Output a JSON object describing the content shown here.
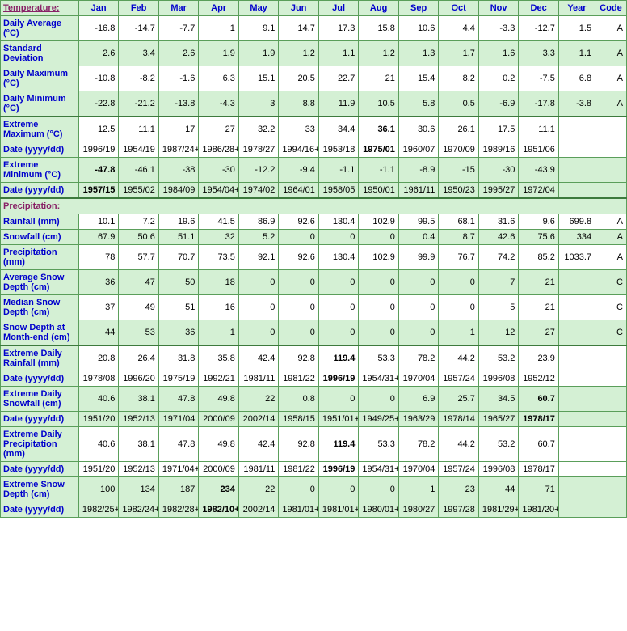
{
  "months": [
    "Jan",
    "Feb",
    "Mar",
    "Apr",
    "May",
    "Jun",
    "Jul",
    "Aug",
    "Sep",
    "Oct",
    "Nov",
    "Dec"
  ],
  "headerFirst": "Temperature:",
  "headerYear": "Year",
  "headerCode": "Code",
  "sectionPrecip": "Precipitation:",
  "rows": [
    {
      "label": "Daily Average (°C)",
      "even": false,
      "vals": [
        "-16.8",
        "-14.7",
        "-7.7",
        "1",
        "9.1",
        "14.7",
        "17.3",
        "15.8",
        "10.6",
        "4.4",
        "-3.3",
        "-12.7",
        "1.5",
        "A"
      ]
    },
    {
      "label": "Standard Deviation",
      "even": true,
      "vals": [
        "2.6",
        "3.4",
        "2.6",
        "1.9",
        "1.9",
        "1.2",
        "1.1",
        "1.2",
        "1.3",
        "1.7",
        "1.6",
        "3.3",
        "1.1",
        "A"
      ]
    },
    {
      "label": "Daily Maximum (°C)",
      "even": false,
      "vals": [
        "-10.8",
        "-8.2",
        "-1.6",
        "6.3",
        "15.1",
        "20.5",
        "22.7",
        "21",
        "15.4",
        "8.2",
        "0.2",
        "-7.5",
        "6.8",
        "A"
      ]
    },
    {
      "label": "Daily Minimum (°C)",
      "even": true,
      "vals": [
        "-22.8",
        "-21.2",
        "-13.8",
        "-4.3",
        "3",
        "8.8",
        "11.9",
        "10.5",
        "5.8",
        "0.5",
        "-6.9",
        "-17.8",
        "-3.8",
        "A"
      ]
    },
    {
      "label": "Extreme Maximum (°C)",
      "even": false,
      "thick": true,
      "vals": [
        "12.5",
        "11.1",
        "17",
        "27",
        "32.2",
        "33",
        "34.4",
        "36.1",
        "30.6",
        "26.1",
        "17.5",
        "11.1",
        "",
        ""
      ],
      "bold": [
        7
      ]
    },
    {
      "label": "Date (yyyy/dd)",
      "even": false,
      "vals": [
        "1996/19",
        "1954/19",
        "1987/24+",
        "1986/28+",
        "1978/27",
        "1994/16+",
        "1953/18",
        "1975/01",
        "1960/07",
        "1970/09",
        "1989/16",
        "1951/06",
        "",
        ""
      ],
      "bold": [
        7
      ]
    },
    {
      "label": "Extreme Minimum (°C)",
      "even": true,
      "vals": [
        "-47.8",
        "-46.1",
        "-38",
        "-30",
        "-12.2",
        "-9.4",
        "-1.1",
        "-1.1",
        "-8.9",
        "-15",
        "-30",
        "-43.9",
        "",
        ""
      ],
      "bold": [
        0
      ]
    },
    {
      "label": "Date (yyyy/dd)",
      "even": true,
      "vals": [
        "1957/15",
        "1955/02",
        "1984/09",
        "1954/04+",
        "1974/02",
        "1964/01",
        "1958/05",
        "1950/01",
        "1961/11",
        "1950/23",
        "1995/27",
        "1972/04",
        "",
        ""
      ],
      "bold": [
        0
      ]
    },
    {
      "section": true
    },
    {
      "label": "Rainfall (mm)",
      "even": false,
      "vals": [
        "10.1",
        "7.2",
        "19.6",
        "41.5",
        "86.9",
        "92.6",
        "130.4",
        "102.9",
        "99.5",
        "68.1",
        "31.6",
        "9.6",
        "699.8",
        "A"
      ]
    },
    {
      "label": "Snowfall (cm)",
      "even": true,
      "vals": [
        "67.9",
        "50.6",
        "51.1",
        "32",
        "5.2",
        "0",
        "0",
        "0",
        "0.4",
        "8.7",
        "42.6",
        "75.6",
        "334",
        "A"
      ]
    },
    {
      "label": "Precipitation (mm)",
      "even": false,
      "vals": [
        "78",
        "57.7",
        "70.7",
        "73.5",
        "92.1",
        "92.6",
        "130.4",
        "102.9",
        "99.9",
        "76.7",
        "74.2",
        "85.2",
        "1033.7",
        "A"
      ]
    },
    {
      "label": "Average Snow Depth (cm)",
      "even": true,
      "vals": [
        "36",
        "47",
        "50",
        "18",
        "0",
        "0",
        "0",
        "0",
        "0",
        "0",
        "7",
        "21",
        "",
        "C"
      ]
    },
    {
      "label": "Median Snow Depth (cm)",
      "even": false,
      "vals": [
        "37",
        "49",
        "51",
        "16",
        "0",
        "0",
        "0",
        "0",
        "0",
        "0",
        "5",
        "21",
        "",
        "C"
      ]
    },
    {
      "label": "Snow Depth at Month-end (cm)",
      "even": true,
      "vals": [
        "44",
        "53",
        "36",
        "1",
        "0",
        "0",
        "0",
        "0",
        "0",
        "1",
        "12",
        "27",
        "",
        "C"
      ]
    },
    {
      "label": "Extreme Daily Rainfall (mm)",
      "even": false,
      "thick": true,
      "vals": [
        "20.8",
        "26.4",
        "31.8",
        "35.8",
        "42.4",
        "92.8",
        "119.4",
        "53.3",
        "78.2",
        "44.2",
        "53.2",
        "23.9",
        "",
        ""
      ],
      "bold": [
        6
      ]
    },
    {
      "label": "Date (yyyy/dd)",
      "even": false,
      "vals": [
        "1978/08",
        "1996/20",
        "1975/19",
        "1992/21",
        "1981/11",
        "1981/22",
        "1996/19",
        "1954/31+",
        "1970/04",
        "1957/24",
        "1996/08",
        "1952/12",
        "",
        ""
      ],
      "bold": [
        6
      ]
    },
    {
      "label": "Extreme Daily Snowfall (cm)",
      "even": true,
      "vals": [
        "40.6",
        "38.1",
        "47.8",
        "49.8",
        "22",
        "0.8",
        "0",
        "0",
        "6.9",
        "25.7",
        "34.5",
        "60.7",
        "",
        ""
      ],
      "bold": [
        11
      ]
    },
    {
      "label": "Date (yyyy/dd)",
      "even": true,
      "vals": [
        "1951/20",
        "1952/13",
        "1971/04",
        "2000/09",
        "2002/14",
        "1958/15",
        "1951/01+",
        "1949/25+",
        "1963/29",
        "1978/14",
        "1965/27",
        "1978/17",
        "",
        ""
      ],
      "bold": [
        11
      ]
    },
    {
      "label": "Extreme Daily Precipitation (mm)",
      "even": false,
      "vals": [
        "40.6",
        "38.1",
        "47.8",
        "49.8",
        "42.4",
        "92.8",
        "119.4",
        "53.3",
        "78.2",
        "44.2",
        "53.2",
        "60.7",
        "",
        ""
      ],
      "bold": [
        6
      ]
    },
    {
      "label": "Date (yyyy/dd)",
      "even": false,
      "vals": [
        "1951/20",
        "1952/13",
        "1971/04+",
        "2000/09",
        "1981/11",
        "1981/22",
        "1996/19",
        "1954/31+",
        "1970/04",
        "1957/24",
        "1996/08",
        "1978/17",
        "",
        ""
      ],
      "bold": [
        6
      ]
    },
    {
      "label": "Extreme Snow Depth (cm)",
      "even": true,
      "vals": [
        "100",
        "134",
        "187",
        "234",
        "22",
        "0",
        "0",
        "0",
        "1",
        "23",
        "44",
        "71",
        "",
        ""
      ],
      "bold": [
        3
      ]
    },
    {
      "label": "Date (yyyy/dd)",
      "even": true,
      "vals": [
        "1982/25+",
        "1982/24+",
        "1982/28+",
        "1982/10+",
        "2002/14",
        "1981/01+",
        "1981/01+",
        "1980/01+",
        "1980/27",
        "1997/28",
        "1981/29+",
        "1981/20+",
        "",
        ""
      ],
      "bold": [
        3
      ]
    }
  ]
}
